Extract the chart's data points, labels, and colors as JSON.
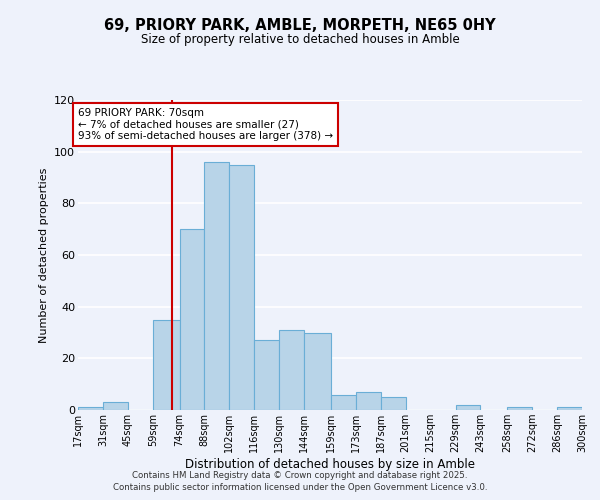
{
  "title": "69, PRIORY PARK, AMBLE, MORPETH, NE65 0HY",
  "subtitle": "Size of property relative to detached houses in Amble",
  "xlabel": "Distribution of detached houses by size in Amble",
  "ylabel": "Number of detached properties",
  "bins": [
    17,
    31,
    45,
    59,
    74,
    88,
    102,
    116,
    130,
    144,
    159,
    173,
    187,
    201,
    215,
    229,
    243,
    258,
    272,
    286,
    300
  ],
  "bin_labels": [
    "17sqm",
    "31sqm",
    "45sqm",
    "59sqm",
    "74sqm",
    "88sqm",
    "102sqm",
    "116sqm",
    "130sqm",
    "144sqm",
    "159sqm",
    "173sqm",
    "187sqm",
    "201sqm",
    "215sqm",
    "229sqm",
    "243sqm",
    "258sqm",
    "272sqm",
    "286sqm",
    "300sqm"
  ],
  "counts": [
    1,
    3,
    0,
    35,
    70,
    96,
    95,
    27,
    31,
    30,
    6,
    7,
    5,
    0,
    0,
    2,
    0,
    1,
    0,
    1
  ],
  "bar_color": "#b8d4e8",
  "bar_edge_color": "#6aaed6",
  "property_line_x": 70,
  "property_line_color": "#cc0000",
  "annotation_text": "69 PRIORY PARK: 70sqm\n← 7% of detached houses are smaller (27)\n93% of semi-detached houses are larger (378) →",
  "annotation_box_color": "white",
  "annotation_box_edge_color": "#cc0000",
  "ylim": [
    0,
    120
  ],
  "yticks": [
    0,
    20,
    40,
    60,
    80,
    100,
    120
  ],
  "bg_color": "#eef2fb",
  "grid_color": "#ffffff",
  "footer_line1": "Contains HM Land Registry data © Crown copyright and database right 2025.",
  "footer_line2": "Contains public sector information licensed under the Open Government Licence v3.0."
}
